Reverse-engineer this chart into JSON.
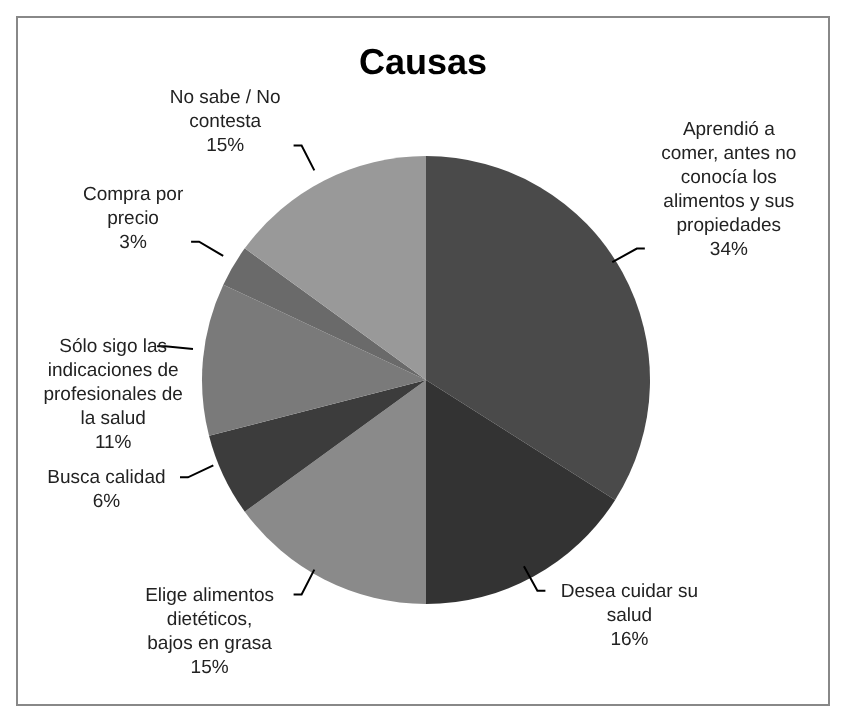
{
  "chart_data": {
    "type": "pie",
    "title": "Causas",
    "categories": [
      "Aprendió a comer, antes no conocía los alimentos y sus propiedades",
      "Desea cuidar su salud",
      "Elige alimentos dietéticos, bajos en grasa",
      "Busca calidad",
      "Sólo sigo las indicaciones de profesionales de la salud",
      "Compra por precio",
      "No sabe / No contesta"
    ],
    "values": [
      34,
      16,
      15,
      6,
      11,
      3,
      15
    ],
    "colors": [
      "#4a4a4a",
      "#333333",
      "#8a8a8a",
      "#3c3c3c",
      "#7a7a7a",
      "#6a6a6a",
      "#999999"
    ],
    "value_labels": [
      "34%",
      "16%",
      "15%",
      "6%",
      "11%",
      "3%",
      "15%"
    ],
    "legend": false
  }
}
